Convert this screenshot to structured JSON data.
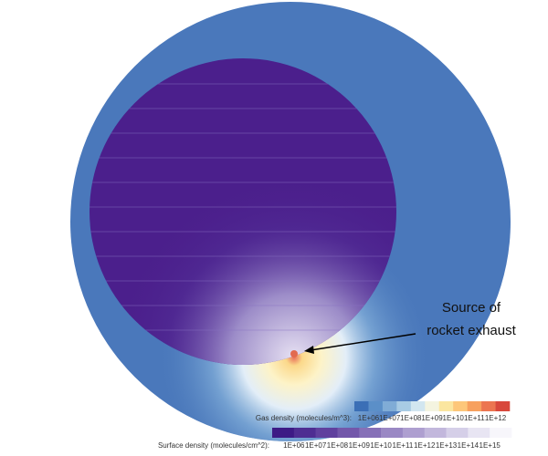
{
  "annotation": {
    "lines": [
      "Source of",
      "rocket exhaust"
    ]
  },
  "colorbars": [
    {
      "label": "Gas density (molecules/m^3):",
      "ticks": [
        "1E+06",
        "1E+07",
        "1E+08",
        "1E+09",
        "1E+10",
        "1E+11",
        "1E+12"
      ]
    },
    {
      "label": "Surface density (molecules/cm^2):",
      "ticks": [
        "1E+06",
        "1E+07",
        "1E+08",
        "1E+09",
        "1E+10",
        "1E+11",
        "1E+12",
        "1E+13",
        "1E+14",
        "1E+15"
      ]
    }
  ]
}
